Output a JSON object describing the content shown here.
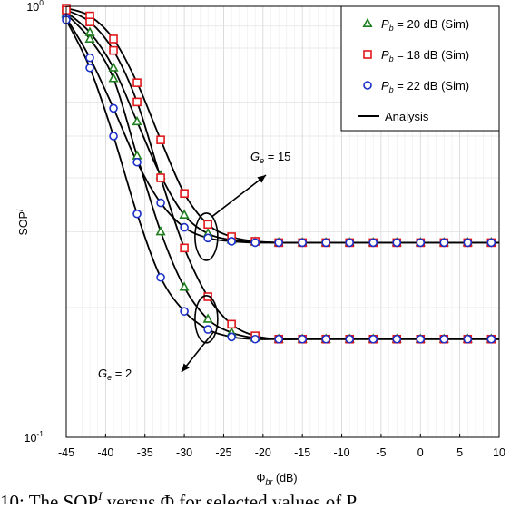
{
  "chart_data": {
    "type": "line",
    "xlabel_base": "Φ",
    "xlabel_sub": "br",
    "xlabel_unit": " (dB)",
    "ylabel_base": "SOP",
    "ylabel_sup": "I",
    "x_ticks": [
      -45,
      -40,
      -35,
      -30,
      -25,
      -20,
      -15,
      -10,
      -5,
      0,
      5,
      10
    ],
    "xlim": [
      -45,
      10
    ],
    "ylim": [
      0.1,
      1
    ],
    "yscale": "log",
    "y_tick_labels": [
      {
        "value": 1,
        "base": "10",
        "exp": "0"
      },
      {
        "value": 0.1,
        "base": "10",
        "exp": "-1"
      }
    ],
    "grid": true,
    "legend_position": "top-right",
    "legend": [
      {
        "marker": "triangle",
        "color": "#1e7d1e",
        "pre": "P",
        "sub": "b",
        "text": " = 20 dB (Sim)"
      },
      {
        "marker": "square",
        "color": "#e0181c",
        "pre": "P",
        "sub": "b",
        "text": " = 18 dB (Sim)"
      },
      {
        "marker": "circle",
        "color": "#1a2fc8",
        "pre": "P",
        "sub": "b",
        "text": " = 22 dB (Sim)"
      },
      {
        "marker": "line",
        "color": "#000000",
        "pre": "",
        "sub": "",
        "text": "Analysis"
      }
    ],
    "annotations": [
      {
        "pre": "G",
        "sub": "e",
        "text": " = 15"
      },
      {
        "pre": "G",
        "sub": "e",
        "text": " = 2"
      }
    ],
    "x": [
      -45,
      -42,
      -39,
      -36,
      -33,
      -30,
      -27,
      -24,
      -21,
      -18,
      -15,
      -12,
      -9,
      -6,
      -3,
      0,
      3,
      6,
      9
    ],
    "series": [
      {
        "name": "P_b = 20 dB (Sim) G_e = 15",
        "marker": "triangle",
        "color": "#1e7d1e",
        "values": [
          0.97,
          0.87,
          0.72,
          0.54,
          0.405,
          0.328,
          0.297,
          0.287,
          0.284,
          0.283,
          0.283,
          0.283,
          0.283,
          0.283,
          0.283,
          0.283,
          0.283,
          0.283,
          0.283
        ]
      },
      {
        "name": "P_b = 20 dB (Sim) G_e = 2",
        "marker": "triangle",
        "color": "#1e7d1e",
        "values": [
          0.96,
          0.84,
          0.68,
          0.45,
          0.3,
          0.223,
          0.188,
          0.175,
          0.17,
          0.169,
          0.169,
          0.169,
          0.169,
          0.169,
          0.169,
          0.169,
          0.169,
          0.169,
          0.169
        ]
      },
      {
        "name": "P_b = 18 dB (Sim) G_e = 15",
        "marker": "square",
        "color": "#e0181c",
        "values": [
          0.99,
          0.95,
          0.84,
          0.665,
          0.49,
          0.368,
          0.312,
          0.292,
          0.285,
          0.283,
          0.283,
          0.283,
          0.283,
          0.283,
          0.283,
          0.283,
          0.283,
          0.283,
          0.283
        ]
      },
      {
        "name": "P_b = 18 dB (Sim) G_e = 2",
        "marker": "square",
        "color": "#e0181c",
        "values": [
          0.98,
          0.92,
          0.79,
          0.6,
          0.4,
          0.275,
          0.212,
          0.183,
          0.172,
          0.169,
          0.169,
          0.169,
          0.169,
          0.169,
          0.169,
          0.169,
          0.169,
          0.169,
          0.169
        ]
      },
      {
        "name": "P_b = 22 dB (Sim) G_e = 15",
        "marker": "circle",
        "color": "#1a2fc8",
        "values": [
          0.94,
          0.76,
          0.58,
          0.435,
          0.35,
          0.307,
          0.29,
          0.285,
          0.283,
          0.283,
          0.283,
          0.283,
          0.283,
          0.283,
          0.283,
          0.283,
          0.283,
          0.283,
          0.283
        ]
      },
      {
        "name": "P_b = 22 dB (Sim) G_e = 2",
        "marker": "circle",
        "color": "#1a2fc8",
        "values": [
          0.93,
          0.72,
          0.5,
          0.33,
          0.235,
          0.196,
          0.178,
          0.171,
          0.169,
          0.169,
          0.169,
          0.169,
          0.169,
          0.169,
          0.169,
          0.169,
          0.169,
          0.169,
          0.169
        ]
      }
    ]
  },
  "caption": {
    "fragment": "10: The SOP",
    "fragment_sup": "I",
    "fragment_rest": " versus Φ   for selected values of P"
  }
}
